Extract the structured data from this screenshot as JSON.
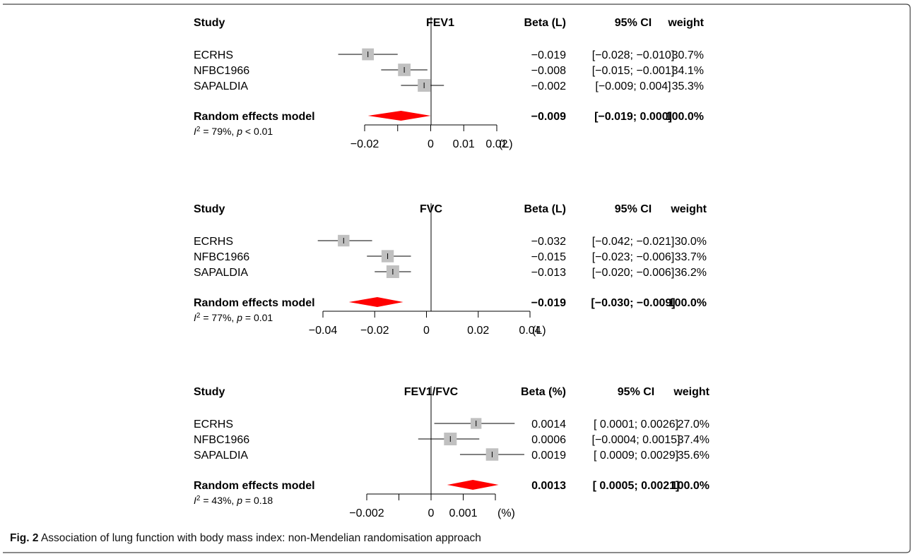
{
  "caption": {
    "label": "Fig. 2",
    "text": "Association of lung function with body mass index: non-Mendelian randomisation approach"
  },
  "colors": {
    "box": "#c0c0c0",
    "diamond": "#ff0000",
    "line": "#000000"
  },
  "chart_data": [
    {
      "type": "forest",
      "title": "FEV1",
      "headers": {
        "study": "Study",
        "estimate": "Beta (L)",
        "ci": "95% CI",
        "weight": "weight"
      },
      "unit": "(L)",
      "xlim": [
        -0.02,
        0.02
      ],
      "xticks": [
        -0.02,
        -0.01,
        0,
        0.01,
        0.02
      ],
      "xtick_labels": [
        "−0.02",
        "",
        "0",
        "0.01",
        "0.02"
      ],
      "studies": [
        {
          "name": "ECRHS",
          "est": -0.019,
          "lo": -0.028,
          "hi": -0.01,
          "weight": 30.7,
          "est_text": "−0.019",
          "ci_text": "[−0.028; −0.010]",
          "weight_text": "30.7%"
        },
        {
          "name": "NFBC1966",
          "est": -0.008,
          "lo": -0.015,
          "hi": -0.001,
          "weight": 34.1,
          "est_text": "−0.008",
          "ci_text": "[−0.015; −0.001]",
          "weight_text": "34.1%"
        },
        {
          "name": "SAPALDIA",
          "est": -0.002,
          "lo": -0.009,
          "hi": 0.004,
          "weight": 35.3,
          "est_text": "−0.002",
          "ci_text": "[−0.009; 0.004]",
          "weight_text": "35.3%"
        }
      ],
      "pooled": {
        "name": "Random effects model",
        "est": -0.009,
        "lo": -0.019,
        "hi": 0.0,
        "est_text": "−0.009",
        "ci_text": "[−0.019; 0.000]",
        "weight_text": "100.0%"
      },
      "heterogeneity": {
        "i2": "79%",
        "p_rel": "<",
        "p": "0.01"
      }
    },
    {
      "type": "forest",
      "title": "FVC",
      "headers": {
        "study": "Study",
        "estimate": "Beta (L)",
        "ci": "95% CI",
        "weight": "weight"
      },
      "unit": "(L)",
      "xlim": [
        -0.04,
        0.04
      ],
      "xticks": [
        -0.04,
        -0.02,
        0,
        0.02,
        0.04
      ],
      "xtick_labels": [
        "−0.04",
        "−0.02",
        "0",
        "0.02",
        "0.04"
      ],
      "studies": [
        {
          "name": "ECRHS",
          "est": -0.032,
          "lo": -0.042,
          "hi": -0.021,
          "weight": 30.0,
          "est_text": "−0.032",
          "ci_text": "[−0.042; −0.021]",
          "weight_text": "30.0%"
        },
        {
          "name": "NFBC1966",
          "est": -0.015,
          "lo": -0.023,
          "hi": -0.006,
          "weight": 33.7,
          "est_text": "−0.015",
          "ci_text": "[−0.023; −0.006]",
          "weight_text": "33.7%"
        },
        {
          "name": "SAPALDIA",
          "est": -0.013,
          "lo": -0.02,
          "hi": -0.006,
          "weight": 36.2,
          "est_text": "−0.013",
          "ci_text": "[−0.020; −0.006]",
          "weight_text": "36.2%"
        }
      ],
      "pooled": {
        "name": "Random effects model",
        "est": -0.019,
        "lo": -0.03,
        "hi": -0.009,
        "est_text": "−0.019",
        "ci_text": "[−0.030; −0.009]",
        "weight_text": "100.0%"
      },
      "heterogeneity": {
        "i2": "77%",
        "p_rel": "=",
        "p": "0.01"
      }
    },
    {
      "type": "forest",
      "title": "FEV1/FVC",
      "headers": {
        "study": "Study",
        "estimate": "Beta (%)",
        "ci": "95% CI",
        "weight": "weight"
      },
      "unit": "(%)",
      "xlim": [
        -0.002,
        0.002
      ],
      "xticks": [
        -0.002,
        -0.001,
        0,
        0.001,
        0.002
      ],
      "xtick_labels": [
        "−0.002",
        "",
        "0",
        "0.001",
        ""
      ],
      "studies": [
        {
          "name": "ECRHS",
          "est": 0.0014,
          "lo": 0.0001,
          "hi": 0.0026,
          "weight": 27.0,
          "est_text": "0.0014",
          "ci_text": "[ 0.0001; 0.0026]",
          "weight_text": "27.0%"
        },
        {
          "name": "NFBC1966",
          "est": 0.0006,
          "lo": -0.0004,
          "hi": 0.0015,
          "weight": 37.4,
          "est_text": "0.0006",
          "ci_text": "[−0.0004; 0.0015]",
          "weight_text": "37.4%"
        },
        {
          "name": "SAPALDIA",
          "est": 0.0019,
          "lo": 0.0009,
          "hi": 0.0029,
          "weight": 35.6,
          "est_text": "0.0019",
          "ci_text": "[ 0.0009; 0.0029]",
          "weight_text": "35.6%"
        }
      ],
      "pooled": {
        "name": "Random effects model",
        "est": 0.0013,
        "lo": 0.0005,
        "hi": 0.0021,
        "est_text": "0.0013",
        "ci_text": "[ 0.0005; 0.0021]",
        "weight_text": "100.0%"
      },
      "heterogeneity": {
        "i2": "43%",
        "p_rel": "=",
        "p": "0.18"
      }
    }
  ]
}
